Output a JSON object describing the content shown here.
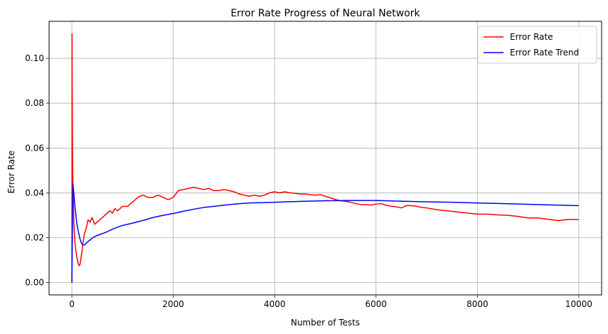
{
  "chart_data": {
    "type": "line",
    "title": "Error Rate Progress of Neural Network",
    "xlabel": "Number of Tests",
    "ylabel": "Error Rate",
    "xlim": [
      -450,
      10450
    ],
    "ylim": [
      -0.0055,
      0.1165
    ],
    "xticks": [
      0,
      2000,
      4000,
      6000,
      8000,
      10000
    ],
    "xtick_labels": [
      "0",
      "2000",
      "4000",
      "6000",
      "8000",
      "10000"
    ],
    "yticks": [
      0.0,
      0.02,
      0.04,
      0.06,
      0.08,
      0.1
    ],
    "ytick_labels": [
      "0.00",
      "0.02",
      "0.04",
      "0.06",
      "0.08",
      "0.10"
    ],
    "grid": true,
    "legend_position": "top-right",
    "series": [
      {
        "name": "Error Rate",
        "color": "#ff0000",
        "x": [
          1,
          3,
          6,
          10,
          15,
          20,
          30,
          40,
          60,
          80,
          100,
          120,
          140,
          160,
          180,
          200,
          220,
          250,
          280,
          320,
          360,
          400,
          450,
          500,
          550,
          600,
          650,
          700,
          750,
          800,
          850,
          900,
          950,
          1000,
          1100,
          1200,
          1300,
          1400,
          1500,
          1600,
          1700,
          1800,
          1900,
          2000,
          2100,
          2200,
          2300,
          2400,
          2500,
          2600,
          2700,
          2800,
          2900,
          3000,
          3100,
          3200,
          3300,
          3400,
          3500,
          3600,
          3700,
          3800,
          3900,
          4000,
          4100,
          4200,
          4300,
          4400,
          4500,
          4600,
          4700,
          4800,
          4900,
          5000,
          5100,
          5200,
          5300,
          5400,
          5500,
          5600,
          5700,
          5800,
          5900,
          6000,
          6100,
          6200,
          6300,
          6400,
          6500,
          6600,
          6700,
          6800,
          6900,
          7000,
          7200,
          7400,
          7600,
          7800,
          8000,
          8200,
          8400,
          8600,
          8800,
          9000,
          9200,
          9400,
          9600,
          9800,
          10000
        ],
        "y": [
          0.0,
          0.111,
          0.09,
          0.07,
          0.052,
          0.045,
          0.035,
          0.026,
          0.018,
          0.014,
          0.011,
          0.009,
          0.0075,
          0.008,
          0.011,
          0.014,
          0.018,
          0.022,
          0.024,
          0.028,
          0.027,
          0.029,
          0.026,
          0.027,
          0.028,
          0.029,
          0.03,
          0.031,
          0.032,
          0.031,
          0.033,
          0.032,
          0.033,
          0.034,
          0.034,
          0.036,
          0.038,
          0.039,
          0.038,
          0.038,
          0.039,
          0.038,
          0.037,
          0.038,
          0.041,
          0.0415,
          0.042,
          0.0425,
          0.042,
          0.0415,
          0.042,
          0.041,
          0.041,
          0.0415,
          0.041,
          0.0405,
          0.0395,
          0.039,
          0.0385,
          0.039,
          0.0385,
          0.039,
          0.04,
          0.0405,
          0.04,
          0.0405,
          0.04,
          0.0398,
          0.0395,
          0.0395,
          0.0392,
          0.039,
          0.0392,
          0.0385,
          0.0378,
          0.037,
          0.0365,
          0.0362,
          0.0358,
          0.0352,
          0.0348,
          0.0348,
          0.0346,
          0.035,
          0.0352,
          0.0345,
          0.034,
          0.0338,
          0.0333,
          0.0343,
          0.0343,
          0.034,
          0.0335,
          0.0333,
          0.0325,
          0.032,
          0.0315,
          0.031,
          0.0305,
          0.0305,
          0.0302,
          0.03,
          0.0295,
          0.0288,
          0.0288,
          0.0282,
          0.0276,
          0.0282,
          0.0281
        ]
      },
      {
        "name": "Error Rate Trend",
        "color": "#0000ff",
        "x": [
          0,
          20,
          40,
          60,
          80,
          100,
          130,
          160,
          190,
          220,
          250,
          280,
          320,
          360,
          400,
          450,
          500,
          600,
          700,
          800,
          900,
          1000,
          1200,
          1400,
          1600,
          1800,
          2000,
          2200,
          2400,
          2600,
          2800,
          3000,
          3200,
          3500,
          4000,
          4500,
          5000,
          5500,
          6000,
          6500,
          7000,
          7500,
          8000,
          8500,
          9000,
          9500,
          10000
        ],
        "y": [
          0.0,
          0.044,
          0.0395,
          0.034,
          0.03,
          0.026,
          0.0225,
          0.0195,
          0.0175,
          0.0168,
          0.0168,
          0.0175,
          0.0183,
          0.019,
          0.0198,
          0.0205,
          0.021,
          0.0218,
          0.0227,
          0.0238,
          0.0247,
          0.0255,
          0.0265,
          0.0277,
          0.029,
          0.03,
          0.0308,
          0.0318,
          0.0327,
          0.0335,
          0.034,
          0.0345,
          0.035,
          0.0355,
          0.0358,
          0.0362,
          0.0365,
          0.0366,
          0.0366,
          0.0363,
          0.036,
          0.0358,
          0.0355,
          0.0352,
          0.0349,
          0.0346,
          0.0343
        ]
      }
    ]
  }
}
